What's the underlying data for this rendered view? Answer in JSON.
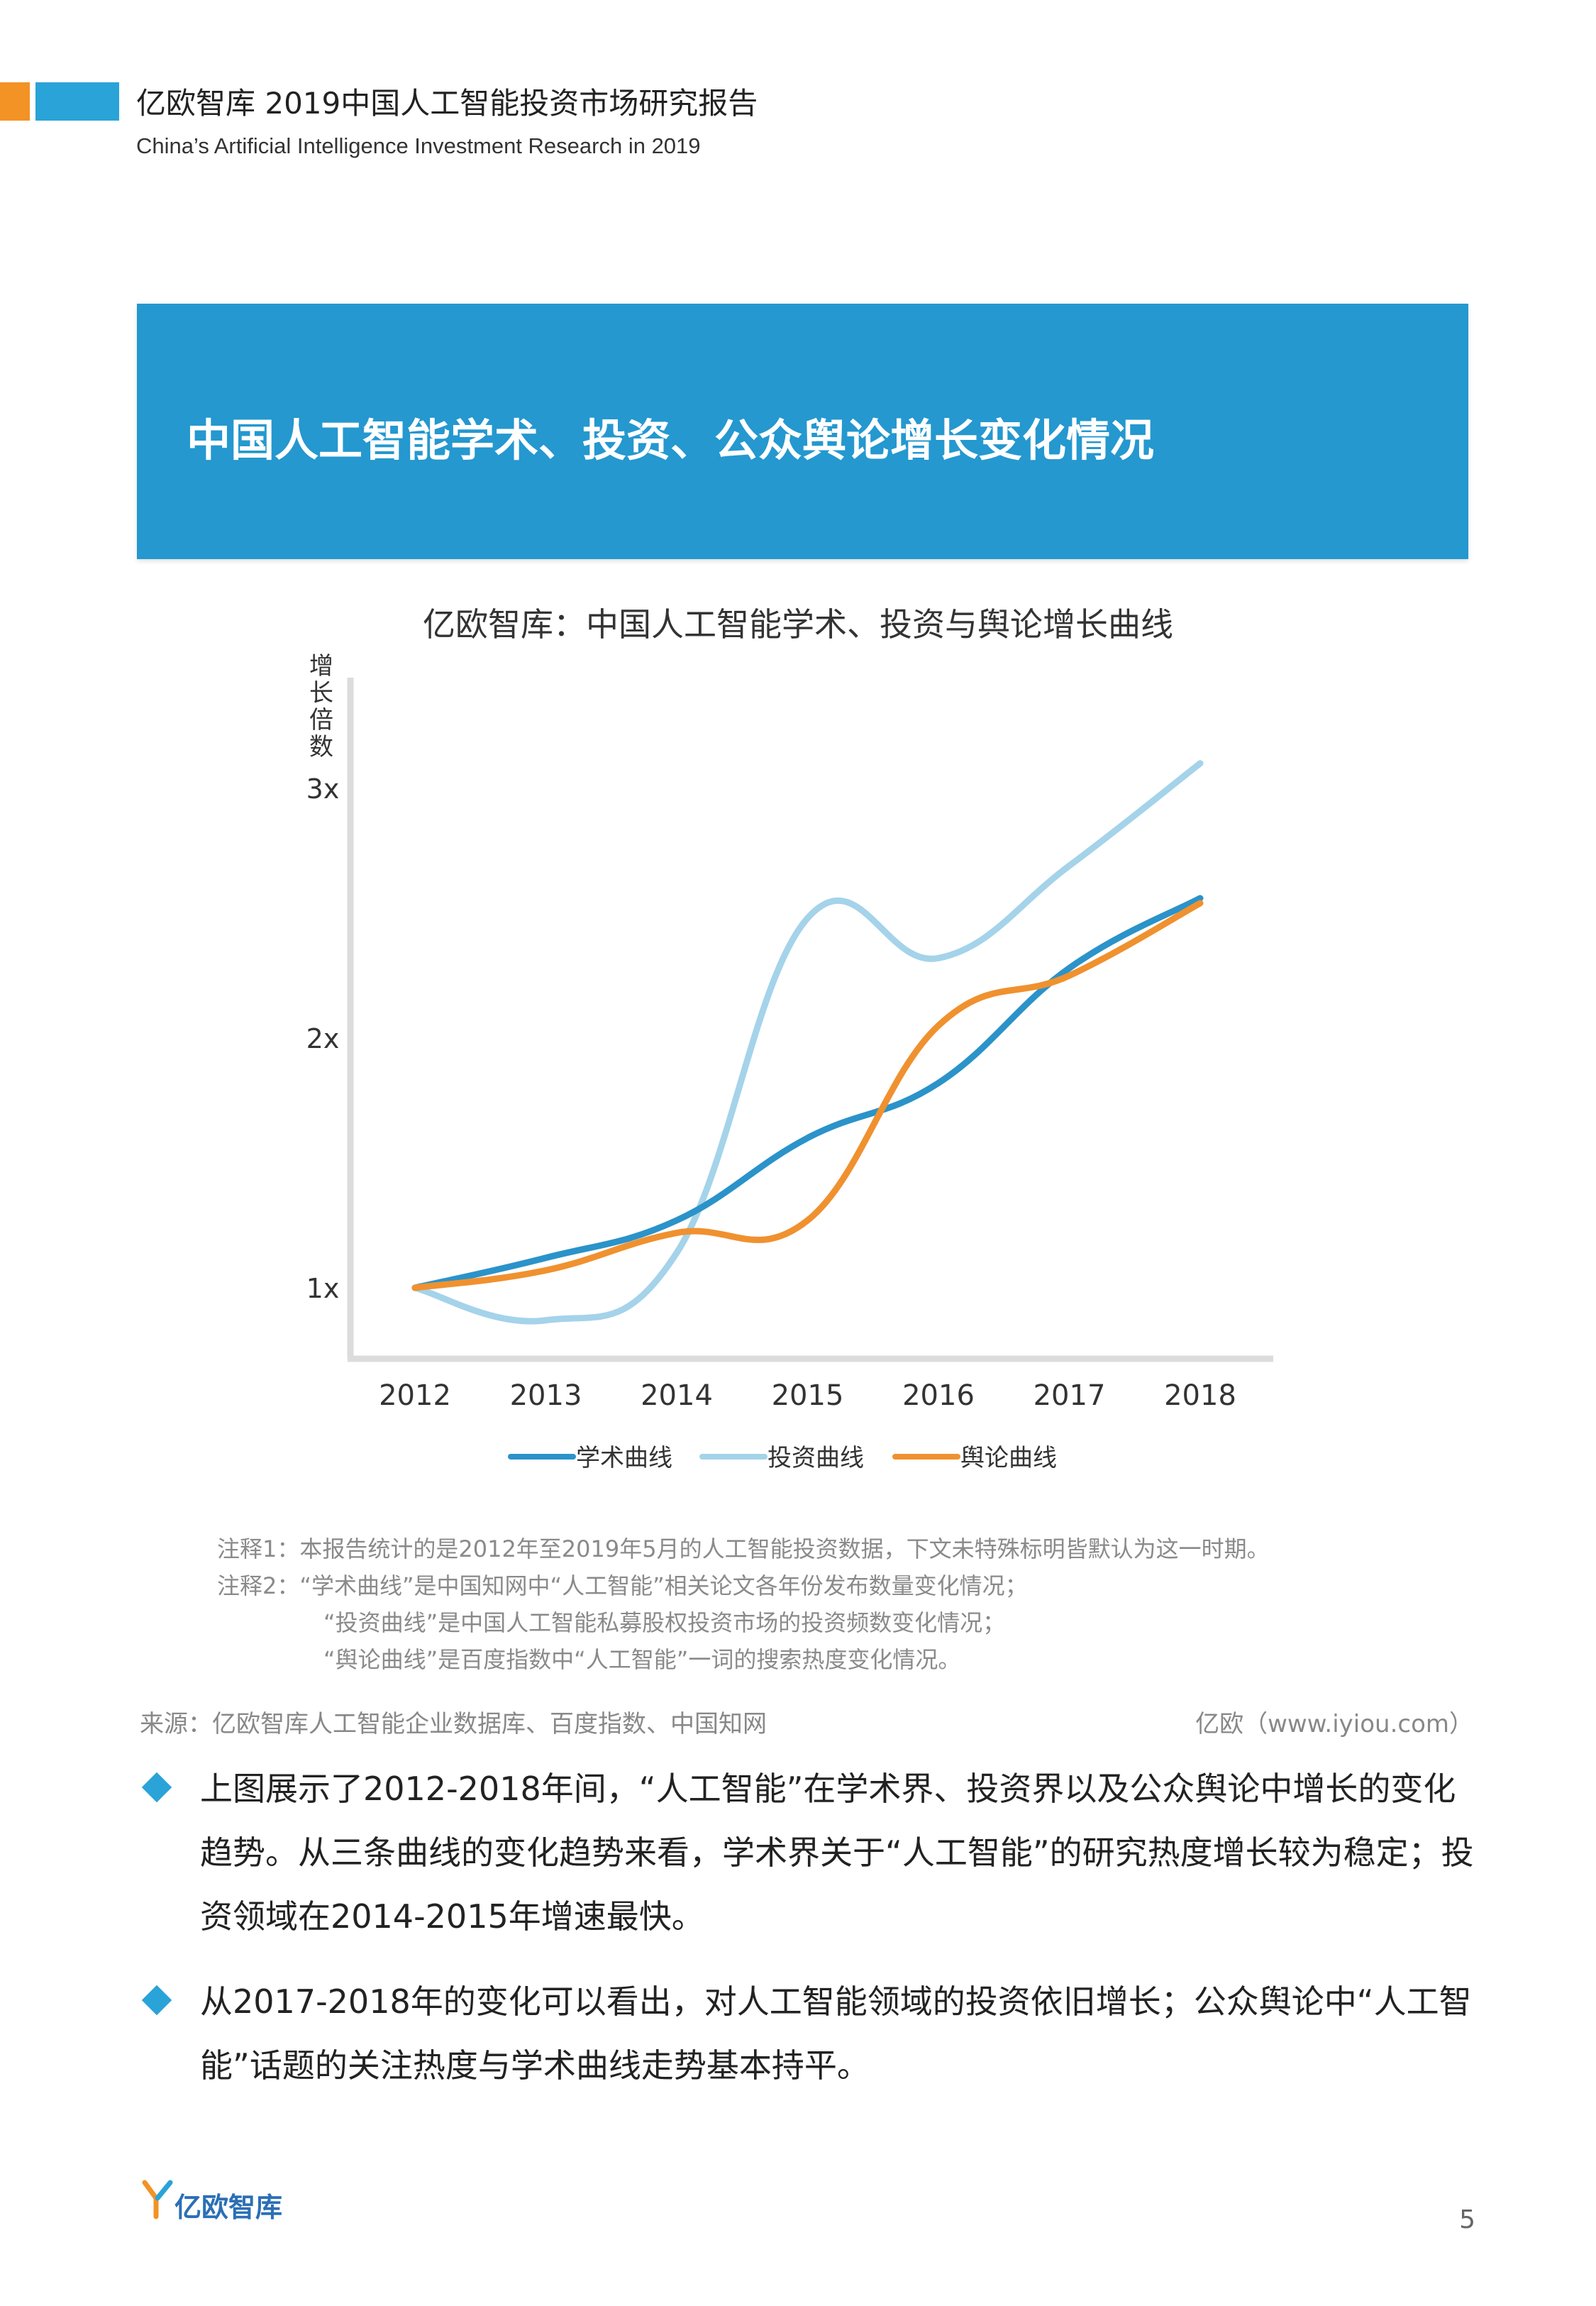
{
  "header": {
    "title": "亿欧智库 2019中国人工智能投资市场研究报告",
    "subtitle": "China’s Artificial Intelligence Investment Research in 2019"
  },
  "banner": {
    "title": "中国人工智能学术、投资、公众舆论增长变化情况"
  },
  "chart_data": {
    "type": "line",
    "title": "亿欧智库：中国人工智能学术、投资与舆论增长曲线",
    "ylabel": "增长倍数",
    "xlabel": "",
    "x": [
      "2012",
      "2013",
      "2014",
      "2015",
      "2016",
      "2017",
      "2018"
    ],
    "y_ticks": [
      "1x",
      "2x",
      "3x"
    ],
    "ylim": [
      0.7,
      3.15
    ],
    "grid": false,
    "legend_position": "bottom",
    "series": [
      {
        "name": "学术曲线",
        "color": "#2b93c9",
        "values": [
          1.0,
          1.12,
          1.27,
          1.6,
          1.82,
          2.28,
          2.56
        ]
      },
      {
        "name": "投资曲线",
        "color": "#a4d3ea",
        "values": [
          1.0,
          0.87,
          1.14,
          2.48,
          2.32,
          2.69,
          3.1
        ]
      },
      {
        "name": "舆论曲线",
        "color": "#f0912f",
        "values": [
          1.0,
          1.07,
          1.22,
          1.27,
          2.05,
          2.25,
          2.54
        ]
      }
    ]
  },
  "notes": {
    "line1": "注释1：本报告统计的是2012年至2019年5月的人工智能投资数据，下文未特殊标明皆默认为这一时期。",
    "line2": "注释2：“学术曲线”是中国知网中“人工智能”相关论文各年份发布数量变化情况；",
    "line3": "“投资曲线”是中国人工智能私募股权投资市场的投资频数变化情况；",
    "line4": "“舆论曲线”是百度指数中“人工智能”一词的搜索热度变化情况。"
  },
  "source": {
    "text": "来源：亿欧智库人工智能企业数据库、百度指数、中国知网",
    "right": "亿欧（www.iyiou.com）"
  },
  "bullets": [
    {
      "text": "上图展示了2012-2018年间，“人工智能”在学术界、投资界以及公众舆论中增长的变化趋势。从三条曲线的变化趋势来看，学术界关于“人工智能”的研究热度增长较为稳定；投资领域在2014-2015年增速最快。"
    },
    {
      "text": "从2017-2018年的变化可以看出，对人工智能领域的投资依旧增长；公众舆论中“人工智能”话题的关注热度与学术曲线走势基本持平。"
    }
  ],
  "footer": {
    "logo_text": "亿欧智库",
    "page": "5"
  },
  "colors": {
    "accent_blue": "#2498cf",
    "accent_orange": "#f39225"
  }
}
